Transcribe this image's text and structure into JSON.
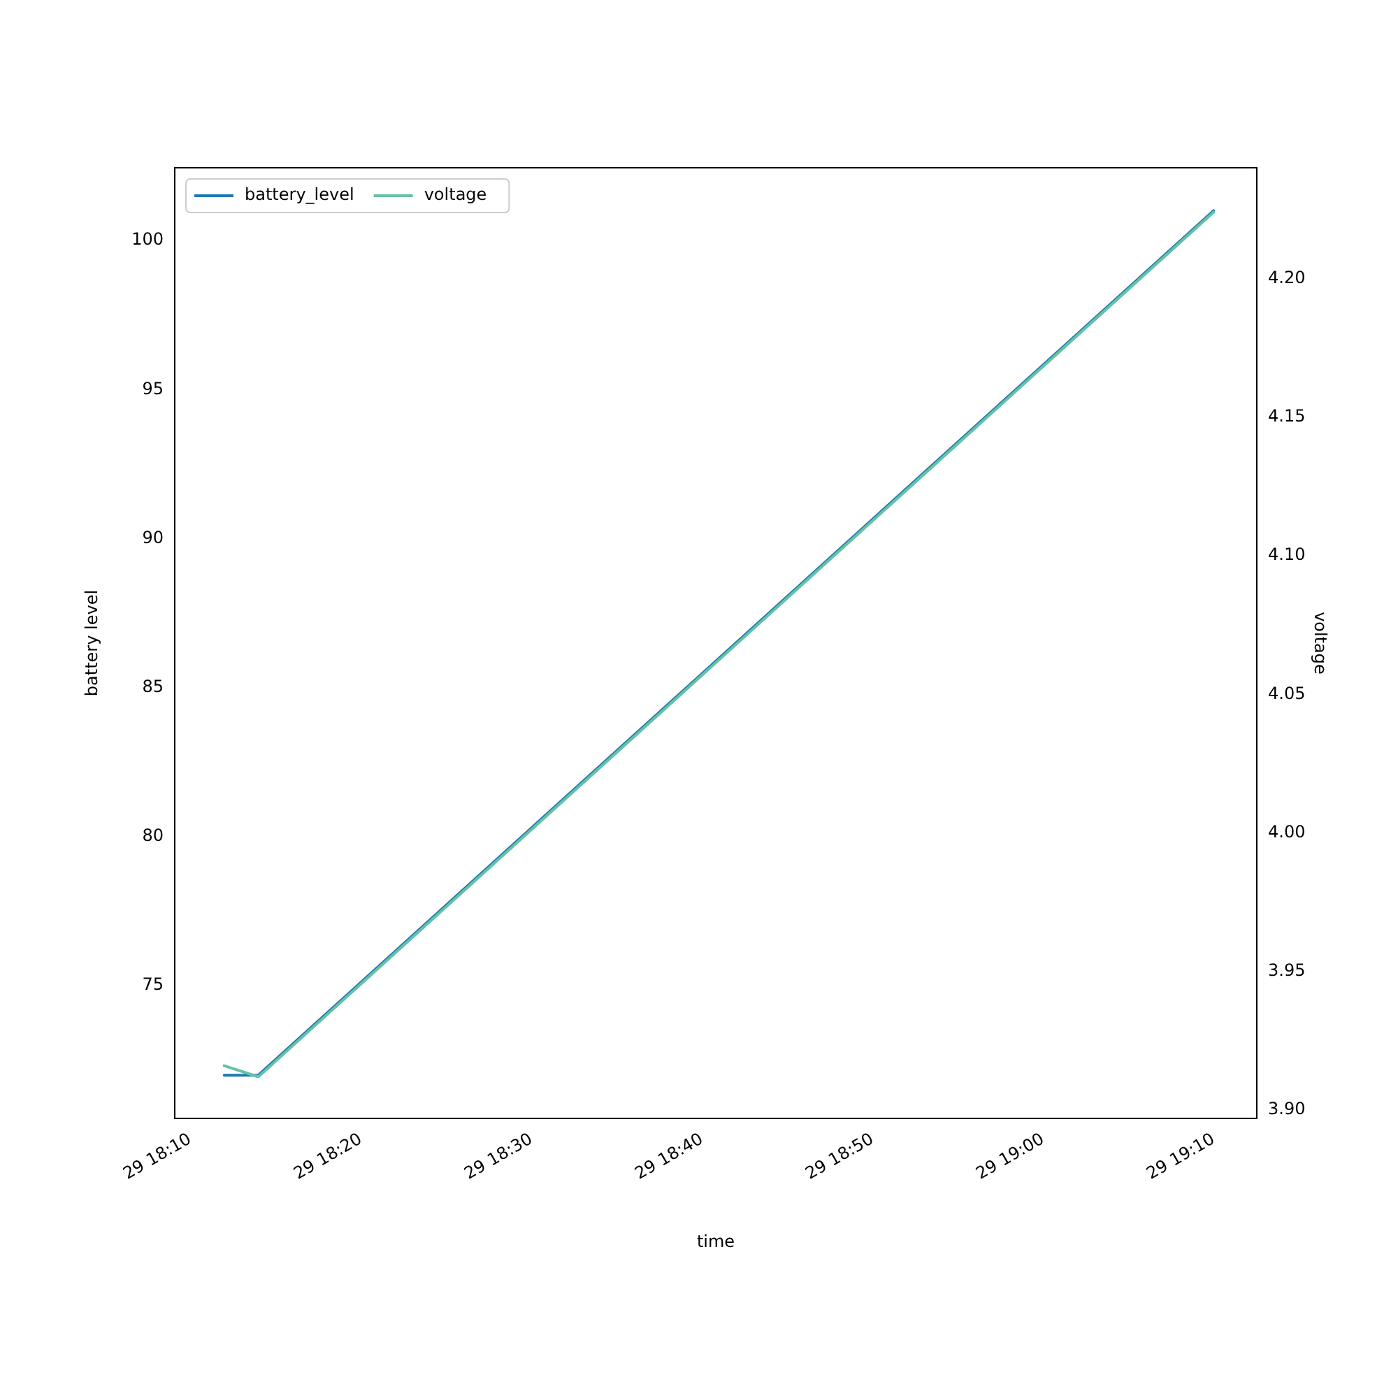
{
  "chart_data": {
    "type": "line",
    "xlabel": "time",
    "ylabel": "battery level",
    "y2label": "voltage",
    "x": [
      "2000-01-29T18:12",
      "2000-01-29T18:14",
      "2000-01-29T19:10"
    ],
    "series": [
      {
        "name": "battery_level",
        "color": "#1f77b4",
        "values": [
          72,
          72,
          101
        ],
        "axis": "y"
      },
      {
        "name": "voltage",
        "color": "#66c2a5",
        "values": [
          3.916,
          3.912,
          4.224
        ],
        "axis": "y2"
      }
    ],
    "xlim": [
      "2000-01-29T18:09:06",
      "2000-01-29T19:12:32"
    ],
    "xticks": [
      {
        "value": "2000-01-29T18:10",
        "label": "29 18:10"
      },
      {
        "value": "2000-01-29T18:20",
        "label": "29 18:20"
      },
      {
        "value": "2000-01-29T18:30",
        "label": "29 18:30"
      },
      {
        "value": "2000-01-29T18:40",
        "label": "29 18:40"
      },
      {
        "value": "2000-01-29T18:50",
        "label": "29 18:50"
      },
      {
        "value": "2000-01-29T19:00",
        "label": "29 19:00"
      },
      {
        "value": "2000-01-29T19:10",
        "label": "29 19:10"
      }
    ],
    "ylim": [
      70.55,
      102.44
    ],
    "yticks": [
      75,
      80,
      85,
      90,
      95,
      100
    ],
    "y2lim": [
      3.897,
      4.24
    ],
    "y2ticks": [
      {
        "value": 3.9,
        "label": "3.90"
      },
      {
        "value": 3.95,
        "label": "3.95"
      },
      {
        "value": 4,
        "label": "4.00"
      },
      {
        "value": 4.05,
        "label": "4.05"
      },
      {
        "value": 4.1,
        "label": "4.10"
      },
      {
        "value": 4.15,
        "label": "4.15"
      },
      {
        "value": 4.2,
        "label": "4.20"
      }
    ],
    "grid": false,
    "legend": "top left",
    "marker": "none",
    "line_style": "solid"
  }
}
